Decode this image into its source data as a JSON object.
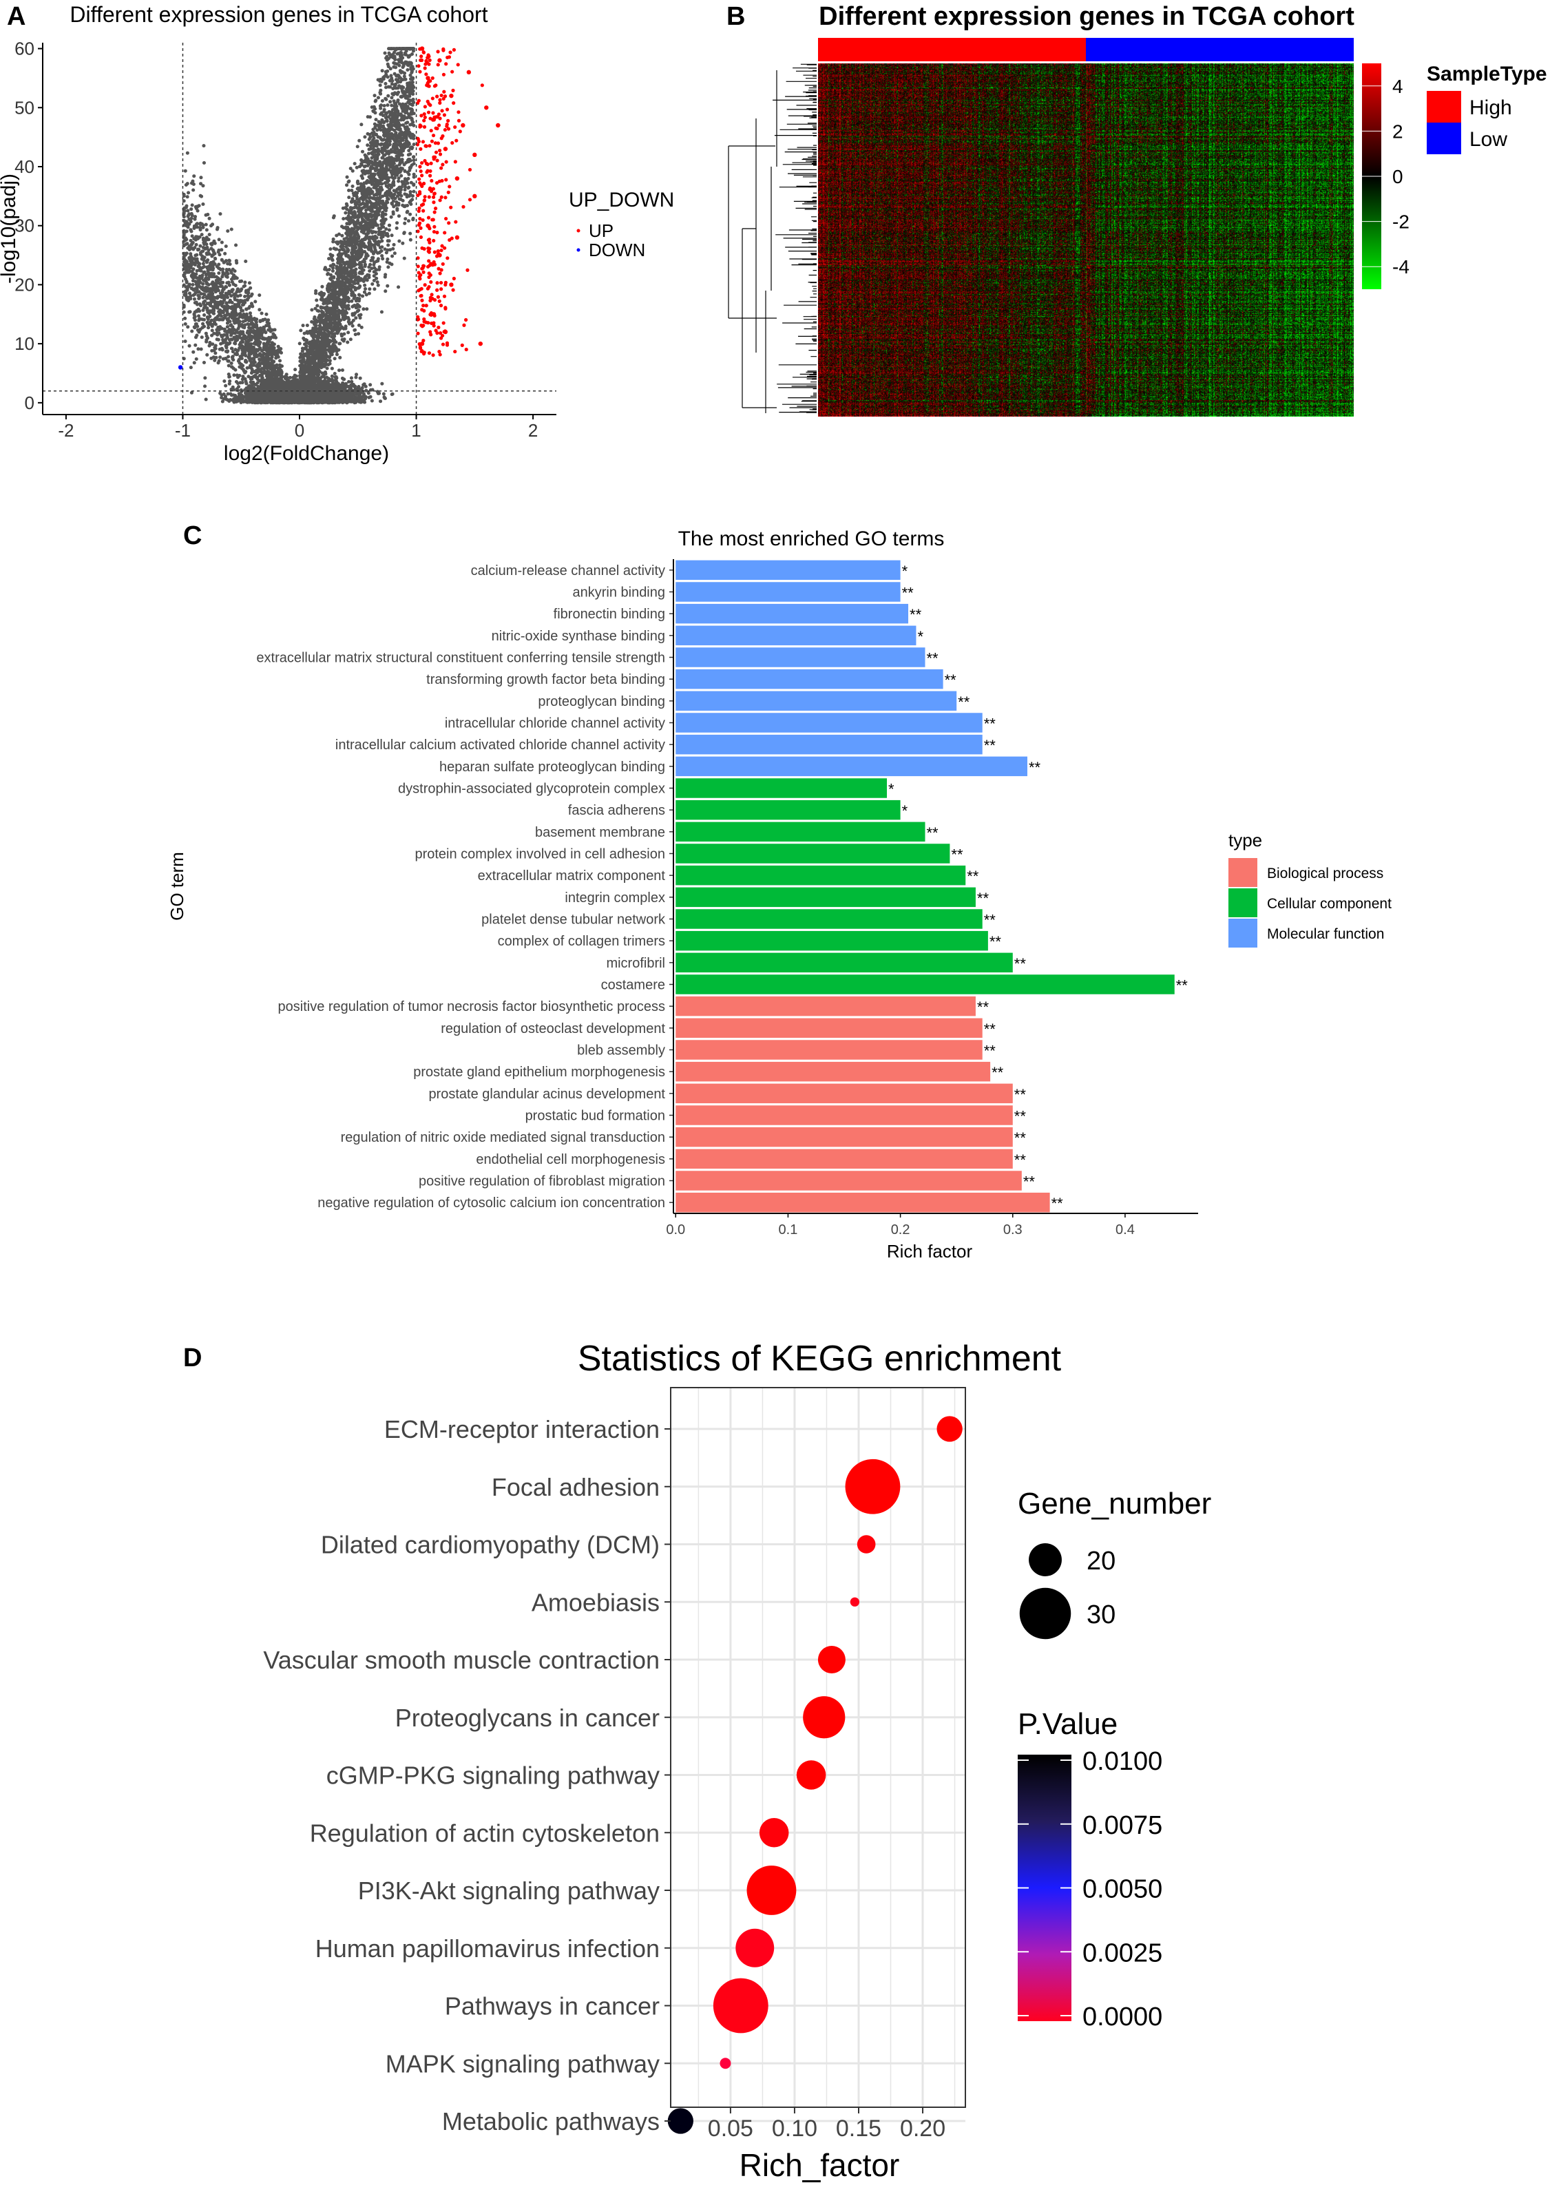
{
  "chart_data": [
    {
      "panel": "A",
      "type": "scatter",
      "title": "Different expression genes in TCGA cohort",
      "xlabel": "log2(FoldChange)",
      "ylabel": "-log10(padj)",
      "xlim": [
        -2.2,
        2.2
      ],
      "ylim": [
        -2,
        61
      ],
      "xticks": [
        -2,
        -1,
        0,
        1,
        2
      ],
      "yticks": [
        0,
        10,
        20,
        30,
        40,
        50,
        60
      ],
      "thresholds": {
        "fc": [
          -1,
          1
        ],
        "padj": 2
      },
      "legend_title": "UP_DOWN",
      "legend": [
        {
          "label": "UP",
          "color": "#ff0000"
        },
        {
          "label": "DOWN",
          "color": "#0000ff"
        }
      ],
      "series": [
        {
          "name": "NOT",
          "color": "#4d4d4d",
          "description": "several thousand non-significant genes forming a V shape"
        },
        {
          "name": "UP",
          "color": "#ff0000",
          "points": [
            [
              1.05,
              60
            ],
            [
              1.1,
              55
            ],
            [
              1.15,
              48
            ],
            [
              1.2,
              58
            ],
            [
              1.25,
              43
            ],
            [
              1.3,
              52
            ],
            [
              1.35,
              38
            ],
            [
              1.4,
              47
            ],
            [
              1.45,
              56
            ],
            [
              1.5,
              35
            ],
            [
              1.1,
              30
            ],
            [
              1.2,
              25
            ],
            [
              1.3,
              20
            ],
            [
              1.15,
              15
            ],
            [
              1.25,
              12
            ],
            [
              1.05,
              10
            ],
            [
              1.35,
              28
            ],
            [
              1.5,
              42
            ],
            [
              1.6,
              50
            ],
            [
              1.7,
              47
            ],
            [
              1.55,
              10
            ]
          ]
        },
        {
          "name": "DOWN",
          "color": "#0000ff",
          "points": [
            [
              -1.02,
              6
            ]
          ]
        }
      ]
    },
    {
      "panel": "B",
      "type": "heatmap",
      "title": "Different expression genes in TCGA cohort",
      "colorbar_ticks": [
        4,
        2,
        0,
        -2,
        -4
      ],
      "color_range": [
        -5,
        5
      ],
      "legend_title": "SampleType",
      "sample_groups": [
        {
          "label": "High",
          "color": "#ff0000"
        },
        {
          "label": "Low",
          "color": "#0000ff"
        }
      ]
    },
    {
      "panel": "C",
      "type": "bar",
      "orientation": "horizontal",
      "title": "The most enriched GO terms",
      "xlabel": "Rich factor",
      "ylabel": "GO term",
      "xlim": [
        -0.002,
        0.465
      ],
      "xticks": [
        "0.0",
        "0.1",
        "0.2",
        "0.3",
        "0.4"
      ],
      "legend_title": "type",
      "legend": [
        {
          "label": "Biological process",
          "color": "#f8766d"
        },
        {
          "label": "Cellular component",
          "color": "#00ba38"
        },
        {
          "label": "Molecular function",
          "color": "#619cff"
        }
      ],
      "terms": [
        {
          "label": "calcium-release channel activity",
          "value": 0.2,
          "sig": "*",
          "type": 2
        },
        {
          "label": "ankyrin binding",
          "value": 0.2,
          "sig": "**",
          "type": 2
        },
        {
          "label": "fibronectin binding",
          "value": 0.207,
          "sig": "**",
          "type": 2
        },
        {
          "label": "nitric-oxide synthase binding",
          "value": 0.214,
          "sig": "*",
          "type": 2
        },
        {
          "label": "extracellular matrix structural constituent conferring tensile strength",
          "value": 0.222,
          "sig": "**",
          "type": 2
        },
        {
          "label": "transforming growth factor beta binding",
          "value": 0.238,
          "sig": "**",
          "type": 2
        },
        {
          "label": "proteoglycan binding",
          "value": 0.25,
          "sig": "**",
          "type": 2
        },
        {
          "label": "intracellular chloride channel activity",
          "value": 0.273,
          "sig": "**",
          "type": 2
        },
        {
          "label": "intracellular calcium activated chloride channel activity",
          "value": 0.273,
          "sig": "**",
          "type": 2
        },
        {
          "label": "heparan sulfate proteoglycan binding",
          "value": 0.313,
          "sig": "**",
          "type": 2
        },
        {
          "label": "dystrophin-associated glycoprotein complex",
          "value": 0.188,
          "sig": "*",
          "type": 1
        },
        {
          "label": "fascia adherens",
          "value": 0.2,
          "sig": "*",
          "type": 1
        },
        {
          "label": "basement membrane",
          "value": 0.222,
          "sig": "**",
          "type": 1
        },
        {
          "label": "protein complex involved in cell adhesion",
          "value": 0.244,
          "sig": "**",
          "type": 1
        },
        {
          "label": "extracellular matrix component",
          "value": 0.258,
          "sig": "**",
          "type": 1
        },
        {
          "label": "integrin complex",
          "value": 0.267,
          "sig": "**",
          "type": 1
        },
        {
          "label": "platelet dense tubular network",
          "value": 0.273,
          "sig": "**",
          "type": 1
        },
        {
          "label": "complex of collagen trimers",
          "value": 0.278,
          "sig": "**",
          "type": 1
        },
        {
          "label": "microfibril",
          "value": 0.3,
          "sig": "**",
          "type": 1
        },
        {
          "label": "costamere",
          "value": 0.444,
          "sig": "**",
          "type": 1
        },
        {
          "label": "positive regulation of tumor necrosis factor biosynthetic process",
          "value": 0.267,
          "sig": "**",
          "type": 0
        },
        {
          "label": "regulation of osteoclast development",
          "value": 0.273,
          "sig": "**",
          "type": 0
        },
        {
          "label": "bleb assembly",
          "value": 0.273,
          "sig": "**",
          "type": 0
        },
        {
          "label": "prostate gland epithelium morphogenesis",
          "value": 0.28,
          "sig": "**",
          "type": 0
        },
        {
          "label": "prostate glandular acinus development",
          "value": 0.3,
          "sig": "**",
          "type": 0
        },
        {
          "label": "prostatic bud formation",
          "value": 0.3,
          "sig": "**",
          "type": 0
        },
        {
          "label": "regulation of nitric oxide mediated signal transduction",
          "value": 0.3,
          "sig": "**",
          "type": 0
        },
        {
          "label": "endothelial cell morphogenesis",
          "value": 0.3,
          "sig": "**",
          "type": 0
        },
        {
          "label": "positive regulation of fibroblast migration",
          "value": 0.308,
          "sig": "**",
          "type": 0
        },
        {
          "label": "negative regulation of cytosolic calcium ion concentration",
          "value": 0.333,
          "sig": "**",
          "type": 0
        }
      ]
    },
    {
      "panel": "D",
      "type": "scatter",
      "title": "Statistics of KEGG enrichment",
      "xlabel": "Rich_factor",
      "xlim": [
        0.0033,
        0.2333
      ],
      "xticks": [
        "0.05",
        "0.10",
        "0.15",
        "0.20"
      ],
      "size_legend_title": "Gene_number",
      "size_legend": [
        20,
        30
      ],
      "color_legend_title": "P.Value",
      "color_legend": [
        "0.0100",
        "0.0075",
        "0.0050",
        "0.0025",
        "0.0000"
      ],
      "pathways": [
        {
          "label": "ECM-receptor interaction",
          "rich": 0.221,
          "genes": 16,
          "p": 0.0
        },
        {
          "label": "Focal adhesion",
          "rich": 0.161,
          "genes": 32,
          "p": 0.0
        },
        {
          "label": "Dilated cardiomyopathy (DCM)",
          "rich": 0.156,
          "genes": 12,
          "p": 0.0002
        },
        {
          "label": "Amoebiasis",
          "rich": 0.147,
          "genes": 7,
          "p": 0.0005
        },
        {
          "label": "Vascular smooth muscle contraction",
          "rich": 0.129,
          "genes": 17,
          "p": 0.0
        },
        {
          "label": "Proteoglycans in cancer",
          "rich": 0.123,
          "genes": 25,
          "p": 0.0
        },
        {
          "label": "cGMP-PKG signaling pathway",
          "rich": 0.113,
          "genes": 18,
          "p": 0.0
        },
        {
          "label": "Regulation of actin cytoskeleton",
          "rich": 0.084,
          "genes": 18,
          "p": 0.0002
        },
        {
          "label": "PI3K-Akt signaling pathway",
          "rich": 0.082,
          "genes": 29,
          "p": 0.0
        },
        {
          "label": "Human papillomavirus infection",
          "rich": 0.069,
          "genes": 23,
          "p": 0.0005
        },
        {
          "label": "Pathways in cancer",
          "rich": 0.058,
          "genes": 32,
          "p": 0.0004
        },
        {
          "label": "MAPK signaling pathway",
          "rich": 0.046,
          "genes": 8,
          "p": 0.0012
        },
        {
          "label": "Metabolic pathways",
          "rich": 0.011,
          "genes": 16,
          "p": 0.01
        }
      ]
    }
  ]
}
